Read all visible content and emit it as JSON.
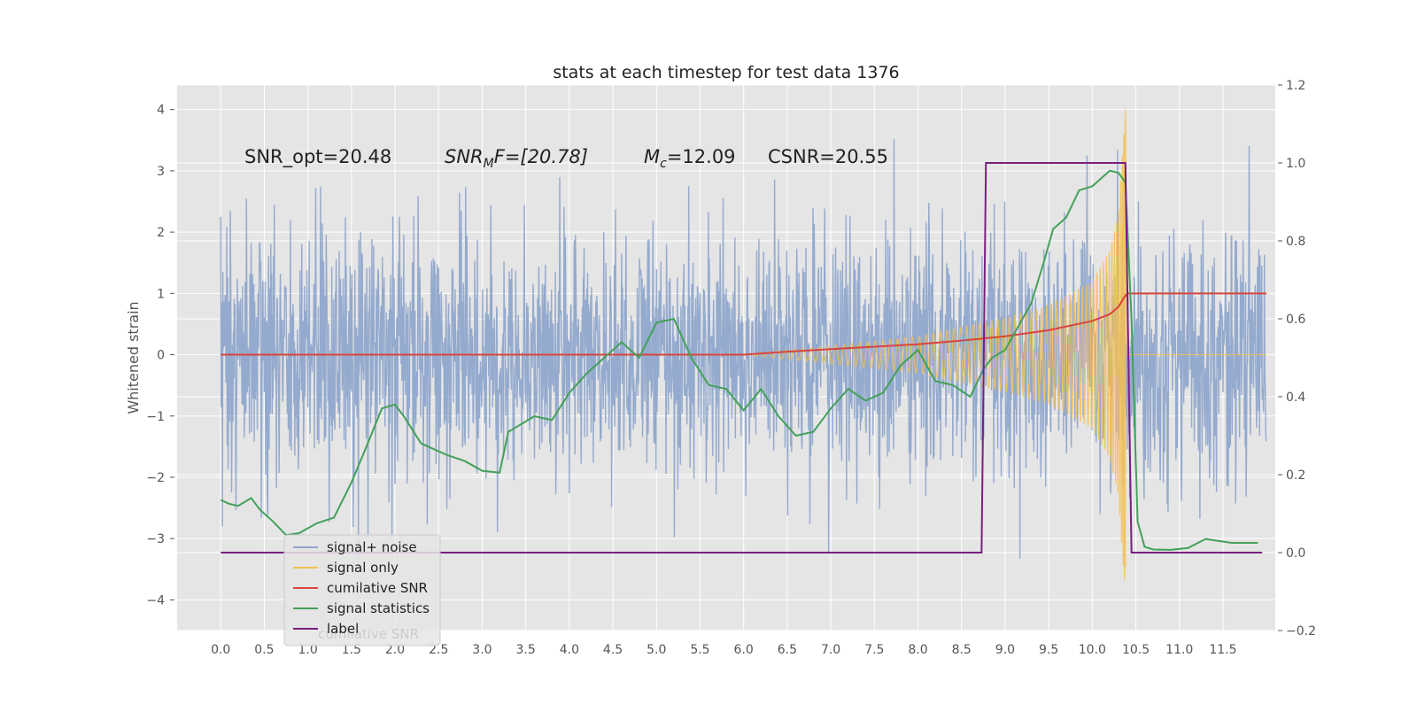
{
  "chart_data": {
    "type": "line",
    "title": "stats at each timestep for test data 1376",
    "ylabel": "Whitened strain",
    "xlabel": "",
    "xlim": [
      -0.5,
      12.1
    ],
    "ylim": [
      -4.5,
      4.4
    ],
    "y2lim": [
      -0.2,
      1.2
    ],
    "xticks": [
      "0.0",
      "0.5",
      "1.0",
      "1.5",
      "2.0",
      "2.5",
      "3.0",
      "3.5",
      "4.0",
      "4.5",
      "5.0",
      "5.5",
      "6.0",
      "6.5",
      "7.0",
      "7.5",
      "8.0",
      "8.5",
      "9.0",
      "9.5",
      "10.0",
      "10.5",
      "11.0",
      "11.5"
    ],
    "yticks": [
      "4",
      "3",
      "2",
      "1",
      "0",
      "−1",
      "−2",
      "−3",
      "−4"
    ],
    "y2ticks": [
      "1.2",
      "1.0",
      "0.8",
      "0.6",
      "0.4",
      "0.2",
      "0.0",
      "−0.2"
    ],
    "grid": true,
    "legend_position": "lower-left",
    "annotations": {
      "snr_opt": "SNR_opt=20.48",
      "snr_mf_prefix": "SNR",
      "snr_mf_sub": "M",
      "snr_mf_suffix": "F=[20.78]",
      "mc_prefix": "M",
      "mc_sub": "c",
      "mc_suffix": "=12.09",
      "csnr": "CSNR=20.55"
    },
    "series": [
      {
        "name": "signal+ noise",
        "color": "#8fa6cc",
        "axis": "left",
        "description": "white noise band, std approx 1, range about -4.1 to 4.0, over x from 0.0 to 12.0"
      },
      {
        "name": "signal only",
        "color": "#f4c052",
        "axis": "left",
        "chirp_start": 6.0,
        "chirp_peak": 10.38,
        "peak_value": 4.0,
        "envelope": [
          [
            6.0,
            0.0
          ],
          [
            7.0,
            0.15
          ],
          [
            8.0,
            0.3
          ],
          [
            9.0,
            0.6
          ],
          [
            9.5,
            0.8
          ],
          [
            10.0,
            1.2
          ],
          [
            10.2,
            1.7
          ],
          [
            10.3,
            2.3
          ],
          [
            10.38,
            4.0
          ]
        ]
      },
      {
        "name": "cumilative SNR",
        "color": "#d9453a",
        "axis": "left",
        "x": [
          0.0,
          6.0,
          6.5,
          7.0,
          7.5,
          8.0,
          8.5,
          9.0,
          9.5,
          10.0,
          10.2,
          10.3,
          10.36,
          10.4,
          12.0
        ],
        "y": [
          0.0,
          0.0,
          0.05,
          0.09,
          0.13,
          0.17,
          0.23,
          0.3,
          0.4,
          0.55,
          0.66,
          0.78,
          0.92,
          1.0,
          1.0
        ]
      },
      {
        "name": "signal statistics",
        "color": "#44a05a",
        "axis": "right",
        "x": [
          0.0,
          0.1,
          0.2,
          0.35,
          0.45,
          0.6,
          0.75,
          0.9,
          1.1,
          1.3,
          1.5,
          1.65,
          1.85,
          2.0,
          2.1,
          2.3,
          2.5,
          2.6,
          2.8,
          3.0,
          3.2,
          3.3,
          3.45,
          3.6,
          3.8,
          4.0,
          4.2,
          4.4,
          4.6,
          4.8,
          5.0,
          5.2,
          5.4,
          5.6,
          5.8,
          6.0,
          6.2,
          6.4,
          6.6,
          6.8,
          7.0,
          7.2,
          7.4,
          7.6,
          7.8,
          8.0,
          8.2,
          8.4,
          8.6,
          8.75,
          8.85,
          9.0,
          9.15,
          9.3,
          9.45,
          9.55,
          9.7,
          9.85,
          10.0,
          10.1,
          10.2,
          10.3,
          10.38,
          10.45,
          10.52,
          10.6,
          10.7,
          10.9,
          11.1,
          11.3,
          11.6,
          11.9
        ],
        "y": [
          0.135,
          0.125,
          0.12,
          0.14,
          0.11,
          0.08,
          0.045,
          0.05,
          0.075,
          0.09,
          0.18,
          0.26,
          0.37,
          0.38,
          0.35,
          0.28,
          0.26,
          0.25,
          0.235,
          0.21,
          0.205,
          0.31,
          0.33,
          0.35,
          0.34,
          0.41,
          0.46,
          0.5,
          0.54,
          0.5,
          0.59,
          0.6,
          0.5,
          0.43,
          0.42,
          0.365,
          0.42,
          0.35,
          0.3,
          0.31,
          0.37,
          0.42,
          0.39,
          0.41,
          0.48,
          0.52,
          0.44,
          0.43,
          0.4,
          0.47,
          0.5,
          0.52,
          0.58,
          0.64,
          0.75,
          0.83,
          0.86,
          0.93,
          0.94,
          0.96,
          0.98,
          0.975,
          0.95,
          0.6,
          0.08,
          0.015,
          0.008,
          0.007,
          0.012,
          0.035,
          0.025,
          0.025
        ]
      },
      {
        "name": "label",
        "color": "#7a1f7f",
        "axis": "right",
        "x": [
          0.0,
          8.73,
          8.78,
          10.38,
          10.45,
          11.95
        ],
        "y": [
          0.0,
          0.0,
          1.0,
          1.0,
          0.0,
          0.0
        ]
      }
    ],
    "legend": [
      {
        "label": "signal+ noise",
        "color": "#8fa6cc"
      },
      {
        "label": "signal only",
        "color": "#f4c052"
      },
      {
        "label": "cumilative SNR",
        "color": "#d9453a"
      },
      {
        "label": "signal statistics",
        "color": "#44a05a"
      },
      {
        "label": "label",
        "color": "#7a1f7f"
      }
    ],
    "legend_ghost_text": "cumilative SNR",
    "colors": {
      "plot_background": "#e5e5e5",
      "grid": "#ffffff"
    }
  }
}
